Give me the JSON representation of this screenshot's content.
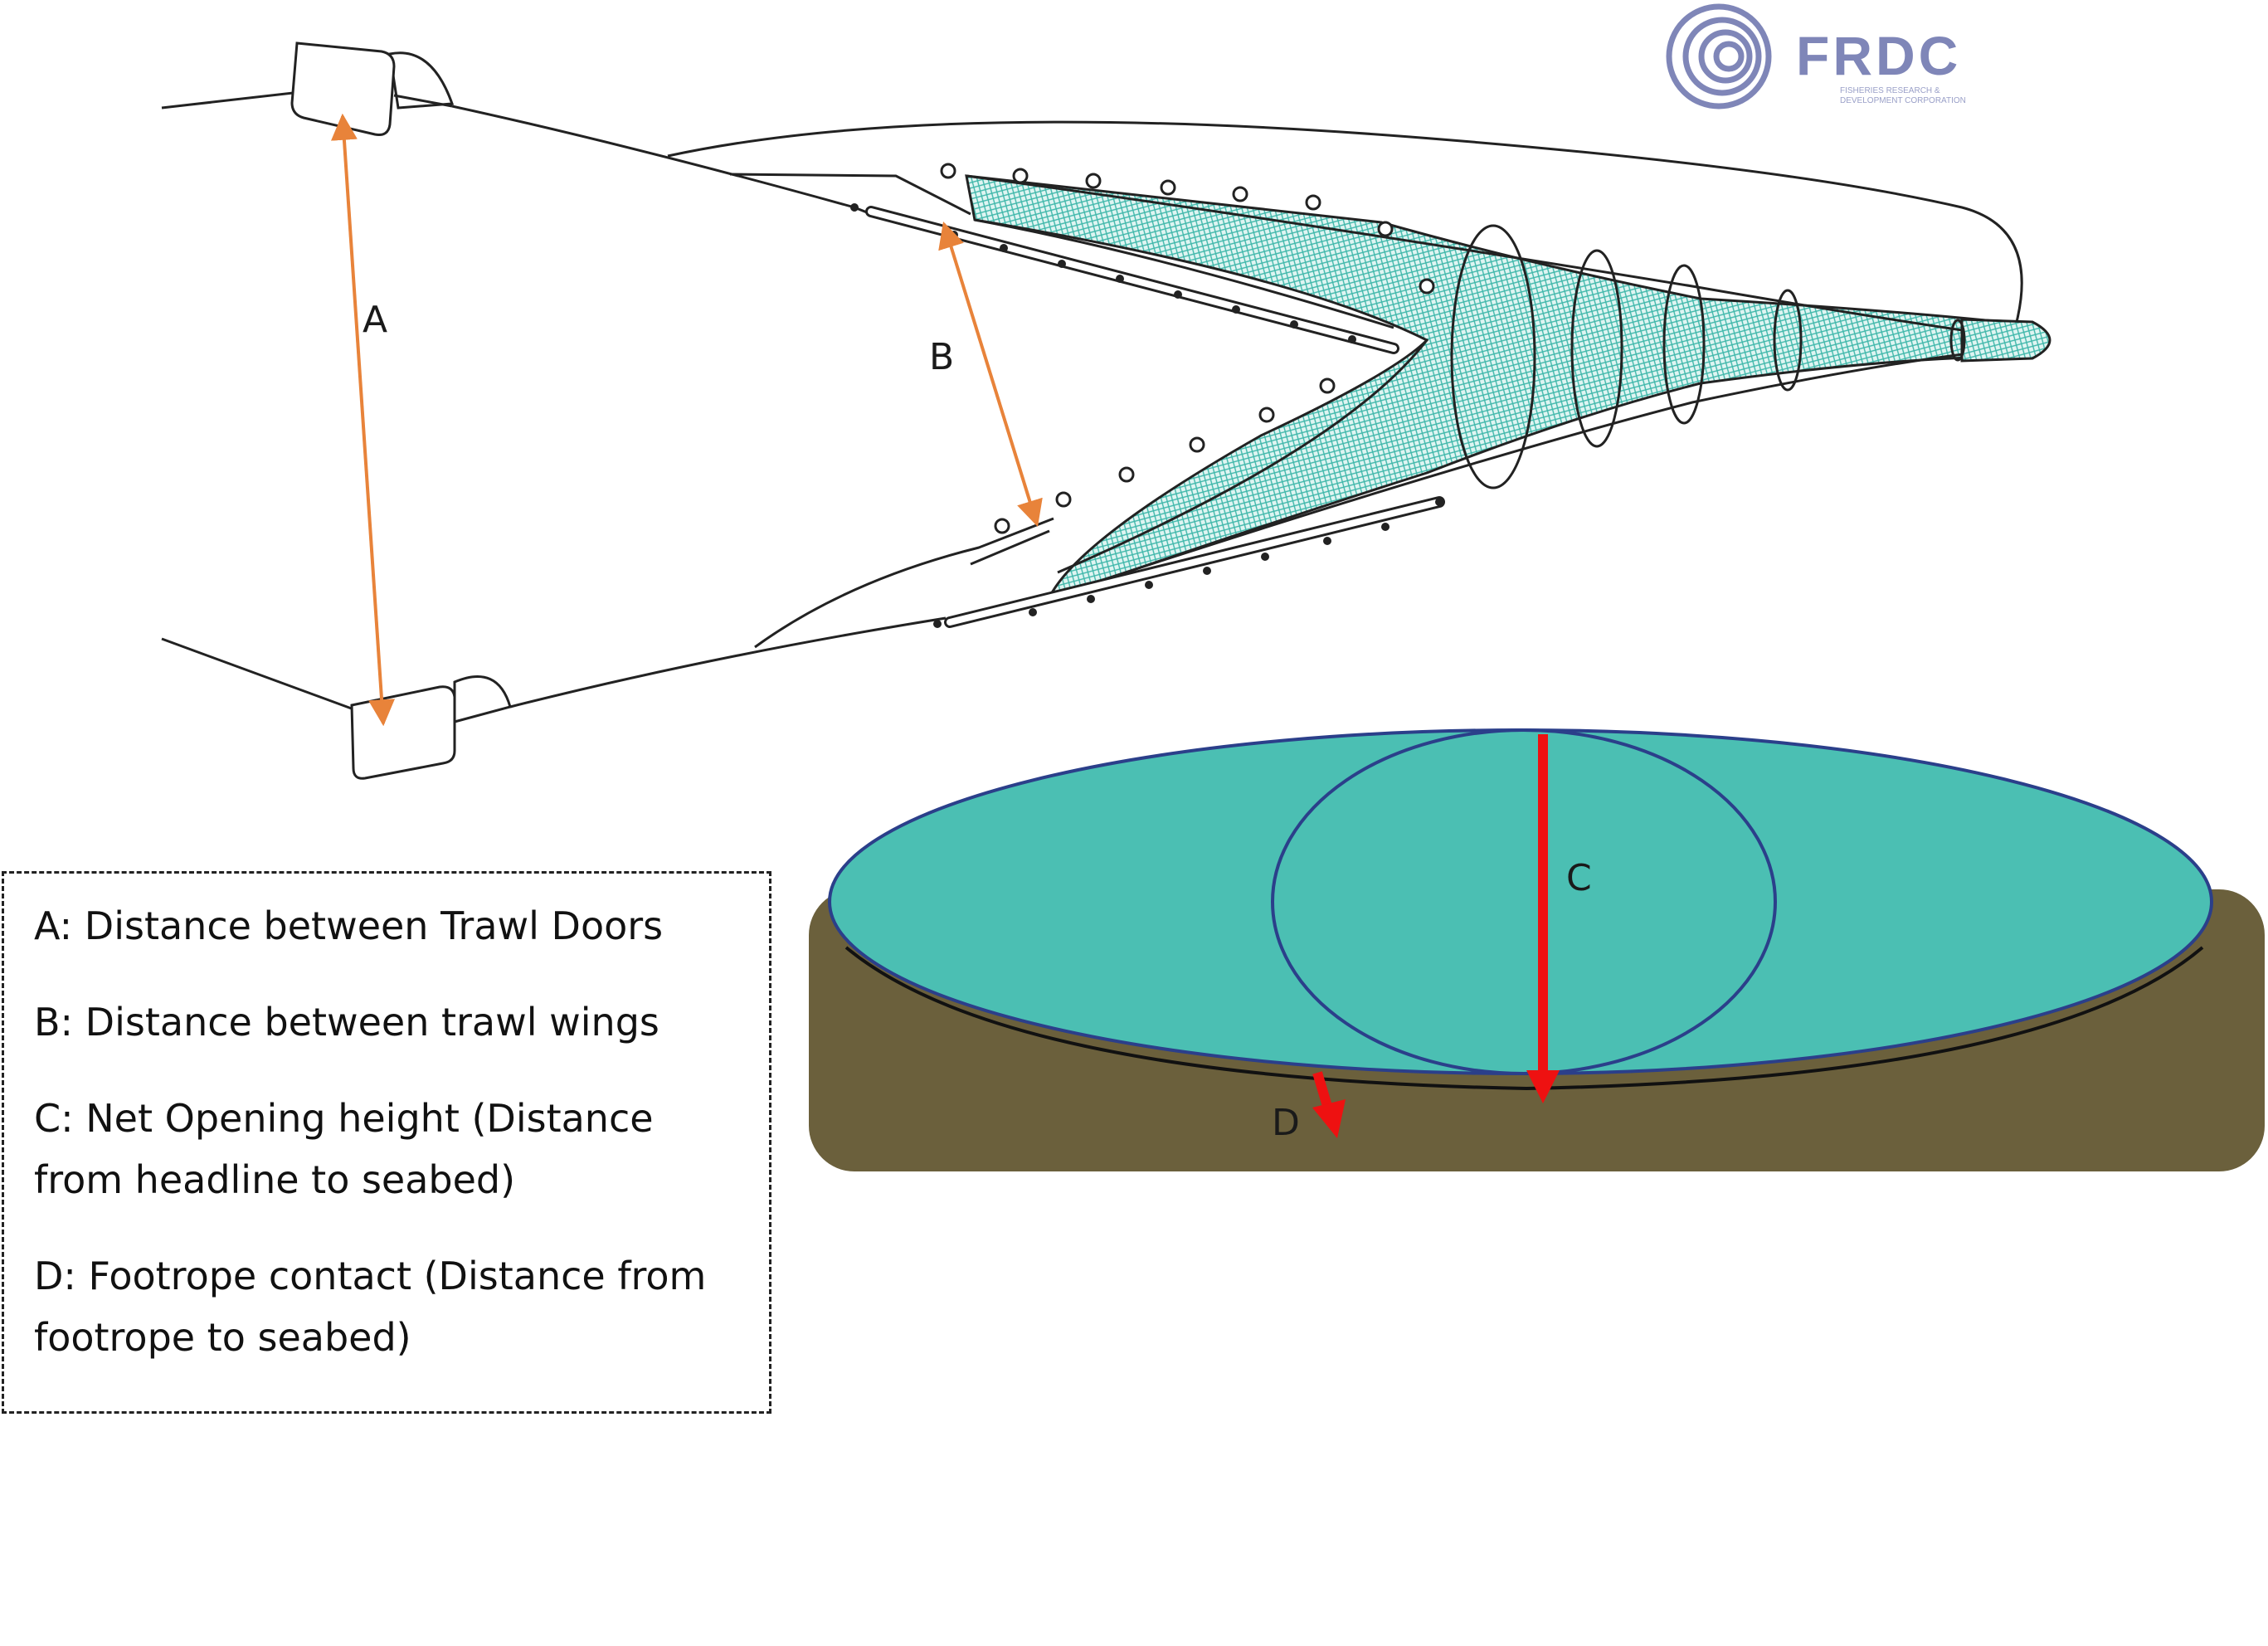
{
  "logo": {
    "name": "FRDC",
    "subtitle_line1": "FISHERIES RESEARCH &",
    "subtitle_line2": "DEVELOPMENT CORPORATION"
  },
  "labels": {
    "a": "A",
    "b": "B",
    "c": "C",
    "d": "D"
  },
  "legend": {
    "items": [
      {
        "lines": [
          "A: Distance between Trawl Doors"
        ]
      },
      {
        "lines": [
          "B: Distance between trawl wings"
        ]
      },
      {
        "lines": [
          "C: Net Opening height (Distance",
          "from headline to seabed)"
        ]
      },
      {
        "lines": [
          "D: Footrope contact (Distance from",
          "footrope to seabed)"
        ]
      }
    ]
  },
  "colors": {
    "net_mesh": "#4bbfb3",
    "measure_arrow": "#e8833a",
    "height_arrow": "#ee1111",
    "net_fill": "#4bbfb3",
    "net_outline": "#2b3f8a",
    "seabed": "#6b603c",
    "logo": "#7f86b8"
  }
}
